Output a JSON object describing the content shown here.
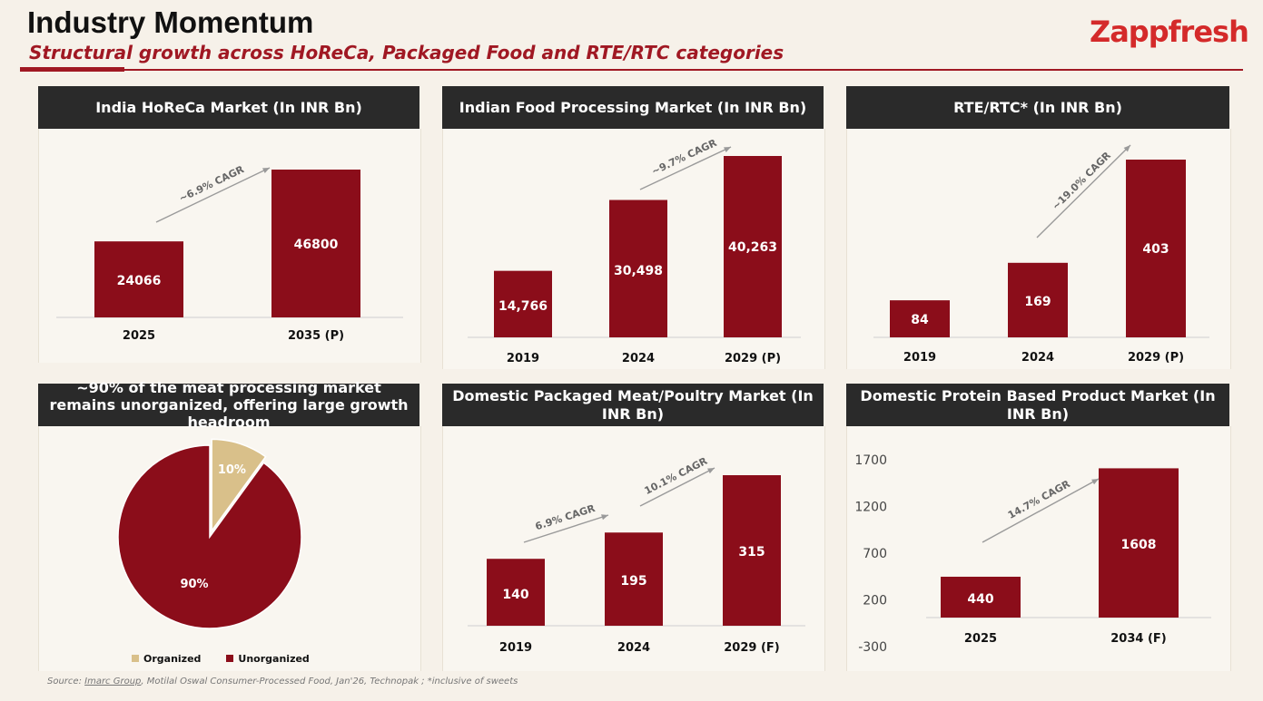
{
  "header": {
    "title": "Industry Momentum",
    "subtitle": "Structural growth across HoReCa, Packaged Food and RTE/RTC categories",
    "logo": "Zappfresh"
  },
  "colors": {
    "bar": "#8b0d1a",
    "accent": "#a01823",
    "pie_minor": "#d9c08a",
    "header_bg": "#2a2a2a"
  },
  "chart_data": [
    {
      "type": "bar",
      "title": "India HoReCa Market (In INR Bn)",
      "categories": [
        "2025",
        "2035 (P)"
      ],
      "values": [
        24066,
        46800
      ],
      "value_labels": [
        "24066",
        "46800"
      ],
      "annotations": [
        "~6.9% CAGR"
      ],
      "ylim": [
        0,
        50000
      ]
    },
    {
      "type": "bar",
      "title": "Indian Food Processing Market (In INR Bn)",
      "categories": [
        "2019",
        "2024",
        "2029 (P)"
      ],
      "values": [
        14766,
        30498,
        40263
      ],
      "value_labels": [
        "14,766",
        "30,498",
        "40,263"
      ],
      "annotations": [
        "~9.7% CAGR"
      ],
      "ylim": [
        0,
        45000
      ]
    },
    {
      "type": "bar",
      "title": "RTE/RTC* (In INR Bn)",
      "categories": [
        "2019",
        "2024",
        "2029 (P)"
      ],
      "values": [
        84,
        169,
        403
      ],
      "value_labels": [
        "84",
        "169",
        "403"
      ],
      "annotations": [
        "~19.0% CAGR"
      ],
      "ylim": [
        0,
        420
      ]
    },
    {
      "type": "pie",
      "title": "~90% of the meat processing market remains unorganized, offering large growth headroom",
      "labels": [
        "Organized",
        "Unorganized"
      ],
      "values": [
        10,
        90
      ],
      "value_labels": [
        "10%",
        "90%"
      ]
    },
    {
      "type": "bar",
      "title": "Domestic Packaged Meat/Poultry Market (In INR Bn)",
      "categories": [
        "2019",
        "2024",
        "2029 (F)"
      ],
      "values": [
        140,
        195,
        315
      ],
      "value_labels": [
        "140",
        "195",
        "315"
      ],
      "annotations": [
        "6.9% CAGR",
        "10.1% CAGR"
      ],
      "ylim": [
        0,
        330
      ]
    },
    {
      "type": "bar",
      "title": "Domestic Protein Based Product Market (In INR Bn)",
      "categories": [
        "2025",
        "2034 (F)"
      ],
      "values": [
        440,
        1608
      ],
      "value_labels": [
        "440",
        "1608"
      ],
      "annotations": [
        "14.7% CAGR"
      ],
      "ylim": [
        -300,
        1700
      ],
      "yticks": [
        "1700",
        "1200",
        "700",
        "200",
        "-300"
      ]
    }
  ],
  "footer": {
    "source_prefix": "Source: ",
    "source_link": "Imarc Group",
    "source_rest": ", Motilal Oswal Consumer-Processed Food, Jan'26, Technopak ; *inclusive of sweets"
  }
}
